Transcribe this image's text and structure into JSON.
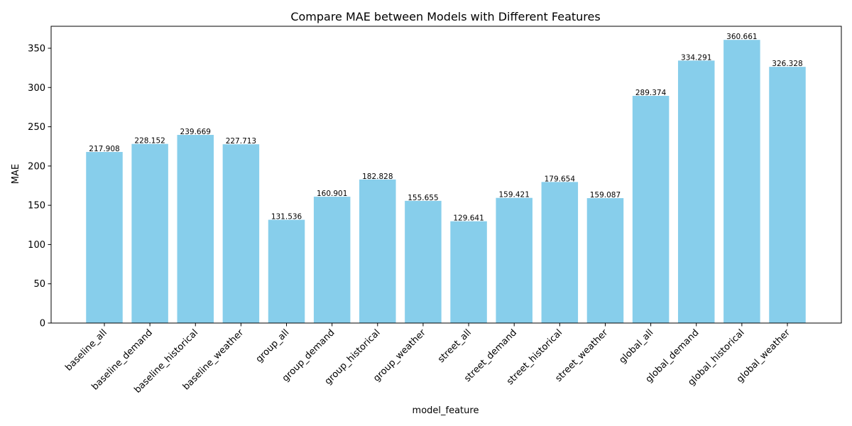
{
  "chart_data": {
    "type": "bar",
    "title": "Compare MAE between Models with Different Features",
    "xlabel": "model_feature",
    "ylabel": "MAE",
    "ylim": [
      0,
      378
    ],
    "yticks": [
      0,
      50,
      100,
      150,
      200,
      250,
      300,
      350
    ],
    "grid": false,
    "bar_color": "#87ceeb",
    "categories": [
      "baseline_all",
      "baseline_demand",
      "baseline_historical",
      "baseline_weather",
      "group_all",
      "group_demand",
      "group_historical",
      "group_weather",
      "street_all",
      "street_demand",
      "street_historical",
      "street_weather",
      "global_all",
      "global_demand",
      "global_historical",
      "global_weather"
    ],
    "values": [
      217.908,
      228.152,
      239.669,
      227.713,
      131.536,
      160.901,
      182.828,
      155.655,
      129.641,
      159.421,
      179.654,
      159.087,
      289.374,
      334.291,
      360.661,
      326.328
    ],
    "value_labels": [
      "217.908",
      "228.152",
      "239.669",
      "227.713",
      "131.536",
      "160.901",
      "182.828",
      "155.655",
      "129.641",
      "159.421",
      "179.654",
      "159.087",
      "289.374",
      "334.291",
      "360.661",
      "326.328"
    ]
  }
}
